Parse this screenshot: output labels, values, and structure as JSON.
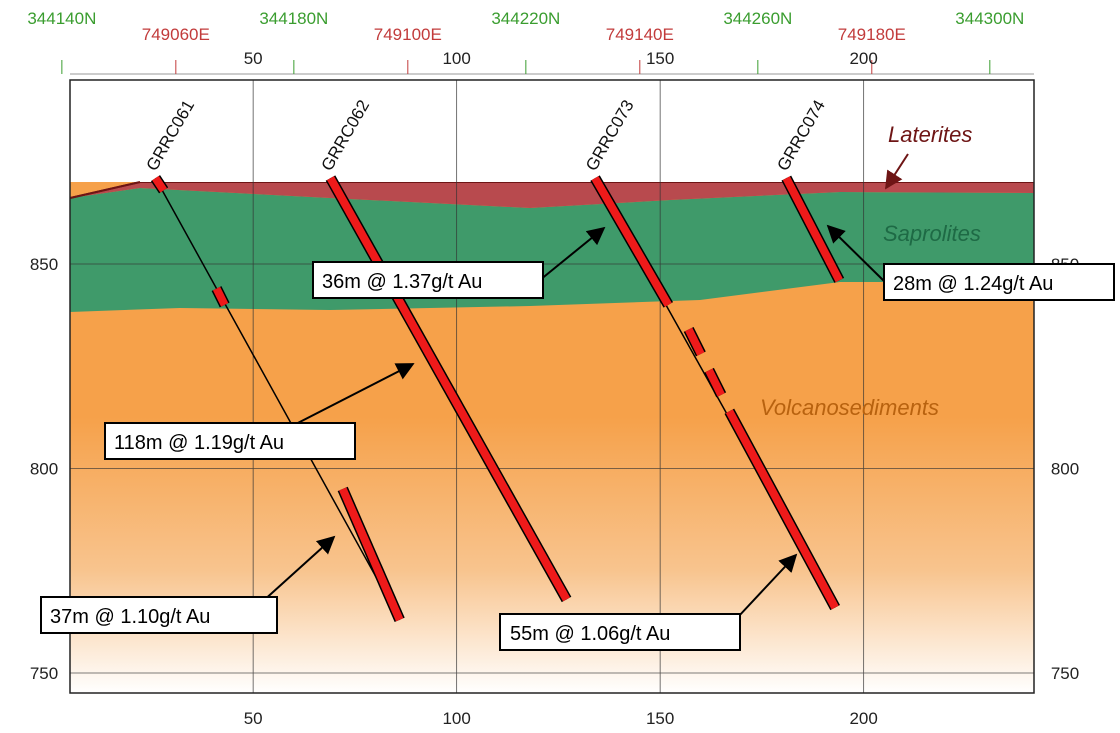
{
  "top_coords": [
    {
      "label": "344140N",
      "kind": "N",
      "x_data": 3
    },
    {
      "label": "749060E",
      "kind": "E",
      "x_data": 31
    },
    {
      "label": "344180N",
      "kind": "N",
      "x_data": 60
    },
    {
      "label": "749100E",
      "kind": "E",
      "x_data": 88
    },
    {
      "label": "344220N",
      "kind": "N",
      "x_data": 117
    },
    {
      "label": "749140E",
      "kind": "E",
      "x_data": 145
    },
    {
      "label": "344260N",
      "kind": "N",
      "x_data": 174
    },
    {
      "label": "749180E",
      "kind": "E",
      "x_data": 202
    },
    {
      "label": "344300N",
      "kind": "N",
      "x_data": 231
    }
  ],
  "x_ticks": [
    "50",
    "100",
    "150",
    "200"
  ],
  "y_ticks": [
    "850",
    "800",
    "750"
  ],
  "layers": {
    "laterites": "Laterites",
    "saprolites": "Saprolites",
    "volcanosediments": "Volcanosediments"
  },
  "colors": {
    "laterites": "#b84a4e",
    "saprolites": "#3f9a6a",
    "volcanosediments": "#f6a14a",
    "drill_interval": "#ee1a1a",
    "laterite_label": "#6e1515",
    "saprolite_label": "#1e6a45",
    "volcano_label": "#b8620f"
  },
  "holes": [
    {
      "name": "GRRC061",
      "top_x": 26,
      "top_y": 871,
      "bot_x": 86,
      "bot_y": 763,
      "intervals": [
        [
          26,
          871,
          28,
          868
        ],
        [
          41,
          844,
          43,
          840
        ],
        [
          72,
          795,
          86,
          763
        ]
      ]
    },
    {
      "name": "GRRC062",
      "top_x": 69,
      "top_y": 871,
      "bot_x": 127,
      "bot_y": 768,
      "intervals": [
        [
          69,
          871,
          127,
          768
        ]
      ]
    },
    {
      "name": "GRRC073",
      "top_x": 134,
      "top_y": 871,
      "bot_x": 193,
      "bot_y": 766,
      "intervals": [
        [
          134,
          871,
          152,
          840
        ],
        [
          157,
          834,
          160,
          828
        ],
        [
          162,
          824,
          165,
          818
        ],
        [
          167,
          814,
          193,
          766
        ]
      ]
    },
    {
      "name": "GRRC074",
      "top_x": 181,
      "top_y": 871,
      "bot_x": 194,
      "bot_y": 846,
      "intervals": [
        [
          181,
          871,
          194,
          846
        ]
      ]
    }
  ],
  "annotations": [
    {
      "text": "36m @ 1.37g/t Au"
    },
    {
      "text": "28m @ 1.24g/t Au"
    },
    {
      "text": "118m @ 1.19g/t Au"
    },
    {
      "text": "37m @ 1.10g/t Au"
    },
    {
      "text": "55m @ 1.06g/t Au"
    }
  ]
}
